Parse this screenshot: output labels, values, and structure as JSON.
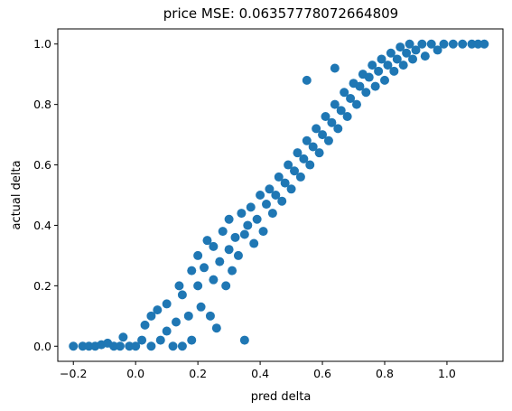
{
  "chart_data": {
    "type": "scatter",
    "title": "price MSE: 0.06357778072664809",
    "xlabel": "pred delta",
    "ylabel": "actual delta",
    "xlim": [
      -0.25,
      1.18
    ],
    "ylim": [
      -0.05,
      1.05
    ],
    "xticks": [
      -0.2,
      0.0,
      0.2,
      0.4,
      0.6,
      0.8,
      1.0
    ],
    "xtick_labels": [
      "−0.2",
      "0.0",
      "0.2",
      "0.4",
      "0.6",
      "0.8",
      "1.0"
    ],
    "yticks": [
      0.0,
      0.2,
      0.4,
      0.6,
      0.8,
      1.0
    ],
    "ytick_labels": [
      "0.0",
      "0.2",
      "0.4",
      "0.6",
      "0.8",
      "1.0"
    ],
    "grid": false,
    "marker_color": "#1f77b4",
    "series": [
      {
        "values": [
          [
            -0.2,
            0.0
          ],
          [
            -0.17,
            0.0
          ],
          [
            -0.15,
            0.0
          ],
          [
            -0.13,
            0.0
          ],
          [
            -0.11,
            0.005
          ],
          [
            -0.09,
            0.01
          ],
          [
            -0.07,
            0.0
          ],
          [
            -0.05,
            0.0
          ],
          [
            -0.04,
            0.03
          ],
          [
            -0.02,
            0.0
          ],
          [
            0.0,
            0.0
          ],
          [
            0.02,
            0.02
          ],
          [
            0.03,
            0.07
          ],
          [
            0.05,
            0.0
          ],
          [
            0.05,
            0.1
          ],
          [
            0.07,
            0.12
          ],
          [
            0.08,
            0.02
          ],
          [
            0.1,
            0.05
          ],
          [
            0.1,
            0.14
          ],
          [
            0.12,
            0.0
          ],
          [
            0.13,
            0.08
          ],
          [
            0.14,
            0.2
          ],
          [
            0.15,
            0.0
          ],
          [
            0.15,
            0.17
          ],
          [
            0.17,
            0.1
          ],
          [
            0.18,
            0.25
          ],
          [
            0.18,
            0.02
          ],
          [
            0.2,
            0.2
          ],
          [
            0.2,
            0.3
          ],
          [
            0.21,
            0.13
          ],
          [
            0.22,
            0.26
          ],
          [
            0.23,
            0.35
          ],
          [
            0.24,
            0.1
          ],
          [
            0.25,
            0.22
          ],
          [
            0.25,
            0.33
          ],
          [
            0.26,
            0.06
          ],
          [
            0.27,
            0.28
          ],
          [
            0.28,
            0.38
          ],
          [
            0.29,
            0.2
          ],
          [
            0.3,
            0.32
          ],
          [
            0.3,
            0.42
          ],
          [
            0.31,
            0.25
          ],
          [
            0.32,
            0.36
          ],
          [
            0.33,
            0.3
          ],
          [
            0.34,
            0.44
          ],
          [
            0.35,
            0.37
          ],
          [
            0.35,
            0.02
          ],
          [
            0.36,
            0.4
          ],
          [
            0.37,
            0.46
          ],
          [
            0.38,
            0.34
          ],
          [
            0.39,
            0.42
          ],
          [
            0.4,
            0.5
          ],
          [
            0.41,
            0.38
          ],
          [
            0.42,
            0.47
          ],
          [
            0.43,
            0.52
          ],
          [
            0.44,
            0.44
          ],
          [
            0.45,
            0.5
          ],
          [
            0.46,
            0.56
          ],
          [
            0.47,
            0.48
          ],
          [
            0.48,
            0.54
          ],
          [
            0.49,
            0.6
          ],
          [
            0.5,
            0.52
          ],
          [
            0.51,
            0.58
          ],
          [
            0.52,
            0.64
          ],
          [
            0.53,
            0.56
          ],
          [
            0.54,
            0.62
          ],
          [
            0.55,
            0.68
          ],
          [
            0.55,
            0.88
          ],
          [
            0.56,
            0.6
          ],
          [
            0.57,
            0.66
          ],
          [
            0.58,
            0.72
          ],
          [
            0.59,
            0.64
          ],
          [
            0.6,
            0.7
          ],
          [
            0.61,
            0.76
          ],
          [
            0.62,
            0.68
          ],
          [
            0.63,
            0.74
          ],
          [
            0.64,
            0.8
          ],
          [
            0.64,
            0.92
          ],
          [
            0.65,
            0.72
          ],
          [
            0.66,
            0.78
          ],
          [
            0.67,
            0.84
          ],
          [
            0.68,
            0.76
          ],
          [
            0.69,
            0.82
          ],
          [
            0.7,
            0.87
          ],
          [
            0.71,
            0.8
          ],
          [
            0.72,
            0.86
          ],
          [
            0.73,
            0.9
          ],
          [
            0.74,
            0.84
          ],
          [
            0.75,
            0.89
          ],
          [
            0.76,
            0.93
          ],
          [
            0.77,
            0.86
          ],
          [
            0.78,
            0.91
          ],
          [
            0.79,
            0.95
          ],
          [
            0.8,
            0.88
          ],
          [
            0.81,
            0.93
          ],
          [
            0.82,
            0.97
          ],
          [
            0.83,
            0.91
          ],
          [
            0.84,
            0.95
          ],
          [
            0.85,
            0.99
          ],
          [
            0.86,
            0.93
          ],
          [
            0.87,
            0.97
          ],
          [
            0.88,
            1.0
          ],
          [
            0.89,
            0.95
          ],
          [
            0.9,
            0.98
          ],
          [
            0.92,
            1.0
          ],
          [
            0.93,
            0.96
          ],
          [
            0.95,
            1.0
          ],
          [
            0.97,
            0.98
          ],
          [
            0.99,
            1.0
          ],
          [
            1.02,
            1.0
          ],
          [
            1.05,
            1.0
          ],
          [
            1.08,
            1.0
          ],
          [
            1.1,
            1.0
          ],
          [
            1.12,
            1.0
          ]
        ]
      }
    ]
  }
}
